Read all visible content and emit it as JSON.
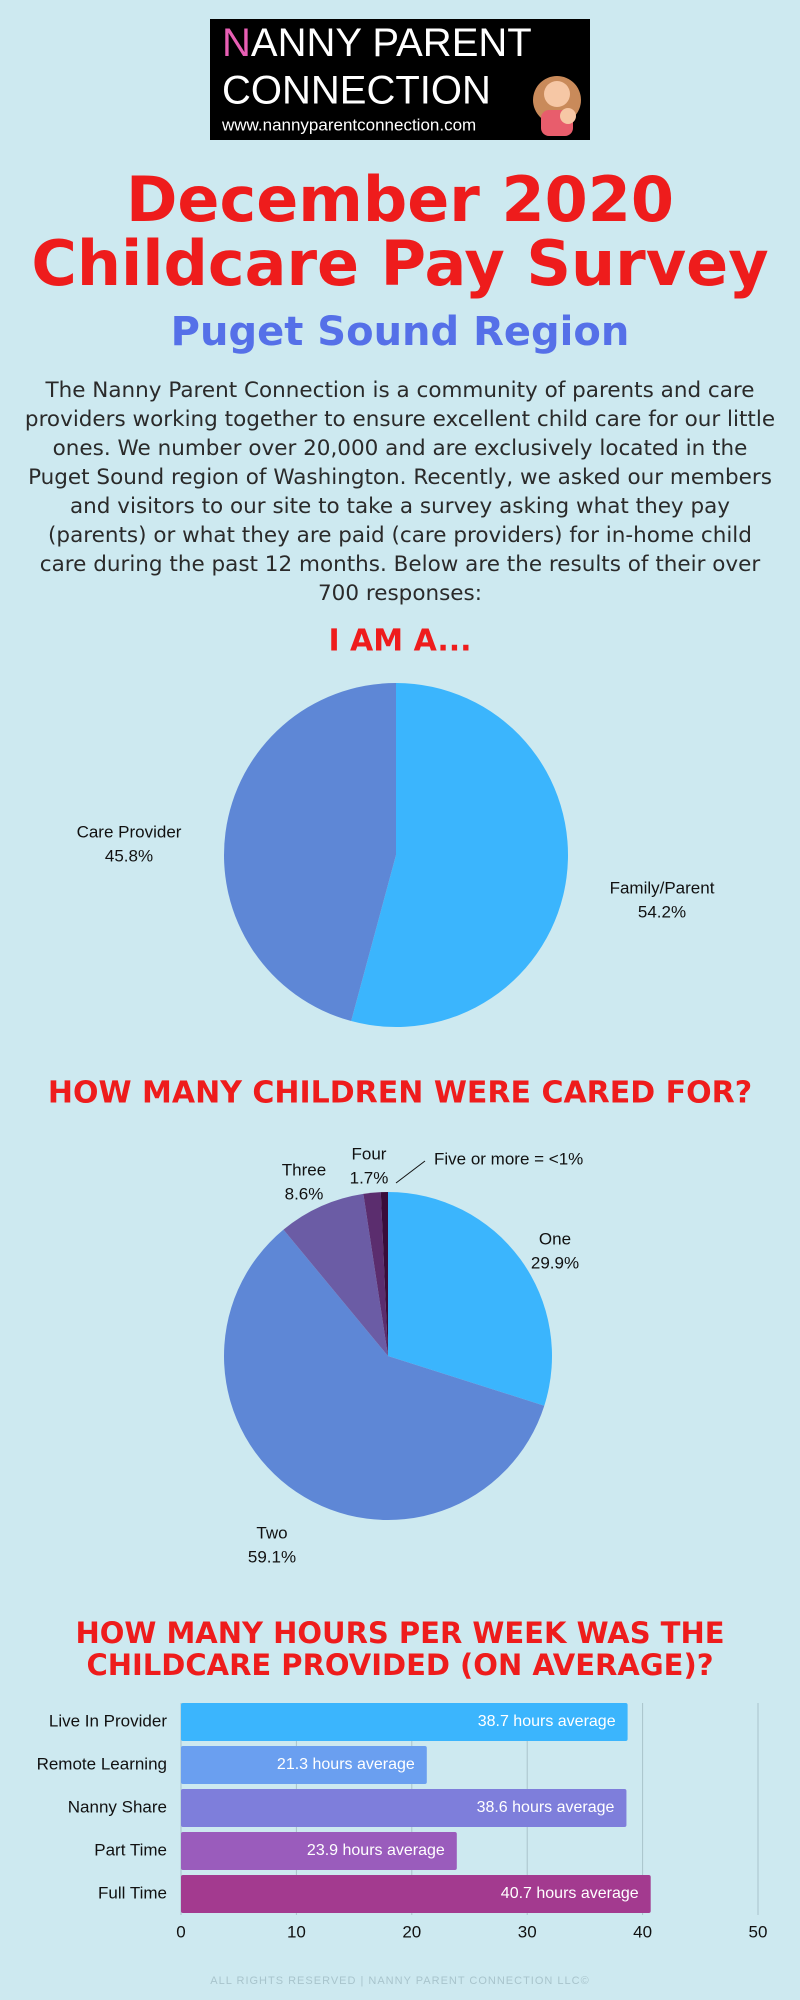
{
  "header": {
    "logo_initial": "N",
    "logo_rest": "ANNY PARENT",
    "logo_line2": "CONNECTION",
    "logo_url": "www.nannyparentconnection.com",
    "title_line1": "December 2020",
    "title_line2": "Childcare Pay Survey",
    "subtitle": "Puget Sound Region"
  },
  "intro": "The Nanny Parent Connection is a community of parents and care providers working together to ensure excellent child care for our little ones. We number over 20,000 and are exclusively located in the Puget Sound region of Washington. Recently, we asked our members and visitors to our site to take a survey asking what they pay (parents) or what they are paid (care providers) for in-home child care during the past 12 months. Below are the results of their over 700 responses:",
  "chart_data": [
    {
      "type": "pie",
      "title": "I AM A...",
      "categories": [
        "Family/Parent",
        "Care Provider"
      ],
      "values": [
        54.2,
        45.8
      ],
      "value_labels": [
        "54.2%",
        "45.8%"
      ],
      "colors": [
        "#3bb5fd",
        "#5e87d6"
      ]
    },
    {
      "type": "pie",
      "title": "HOW MANY CHILDREN WERE CARED FOR?",
      "categories": [
        "One",
        "Two",
        "Three",
        "Four",
        "Five or more = <1%"
      ],
      "values": [
        29.9,
        59.1,
        8.6,
        1.7,
        0.7
      ],
      "value_labels": [
        "29.9%",
        "59.1%",
        "8.6%",
        "1.7%",
        null
      ],
      "colors": [
        "#3bb5fd",
        "#5e87d6",
        "#6b5ca5",
        "#5b2d6e",
        "#3a0d3a"
      ]
    },
    {
      "type": "hbar",
      "title": [
        "HOW MANY HOURS PER WEEK WAS THE",
        "CHILDCARE PROVIDED (ON AVERAGE)?"
      ],
      "categories": [
        "Live In Provider",
        "Remote Learning",
        "Nanny Share",
        "Part Time",
        "Full Time"
      ],
      "values": [
        38.7,
        21.3,
        38.6,
        23.9,
        40.7
      ],
      "value_labels": [
        "38.7 hours average",
        "21.3 hours average",
        "38.6 hours average",
        "23.9 hours average",
        "40.7 hours average"
      ],
      "colors": [
        "#3bb5fd",
        "#6a9ff0",
        "#7e7edb",
        "#9a5cbc",
        "#a33a8f"
      ],
      "xlim": [
        0,
        50
      ],
      "xticks": [
        0,
        10,
        20,
        30,
        40,
        50
      ],
      "grid": true
    }
  ],
  "footer": "ALL RIGHTS RESERVED | NANNY PARENT CONNECTION LLC©"
}
